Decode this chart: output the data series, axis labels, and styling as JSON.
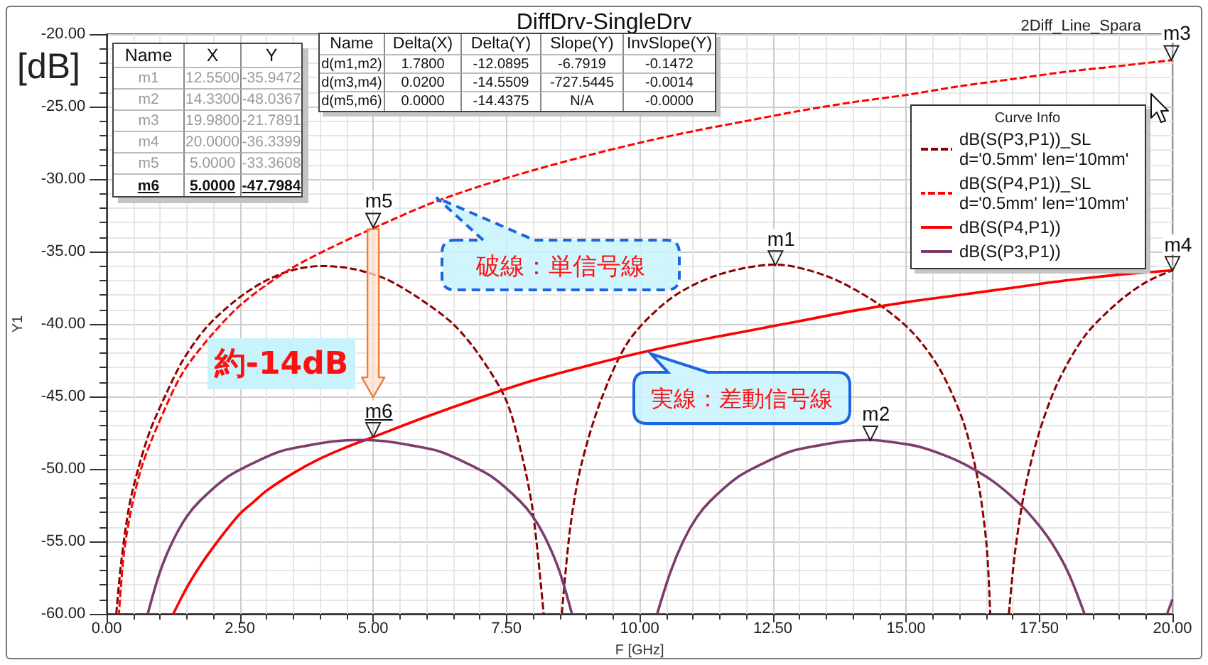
{
  "chart_data": {
    "type": "line",
    "title": "DiffDrv-SingleDrv",
    "subtitle": "2Diff_Line_Spara",
    "xlabel": "F [GHz]",
    "ylabel": "Y1",
    "legend_title": "Curve Info",
    "legend": "top right",
    "grid": true,
    "xlim": [
      0,
      20
    ],
    "xticks": [
      {
        "value": 0,
        "label": "0.00"
      },
      {
        "value": 2.5,
        "label": "2.50"
      },
      {
        "value": 5,
        "label": "5.00"
      },
      {
        "value": 7.5,
        "label": "7.50"
      },
      {
        "value": 10,
        "label": "10.00"
      },
      {
        "value": 12.5,
        "label": "12.50"
      },
      {
        "value": 15,
        "label": "15.00"
      },
      {
        "value": 17.5,
        "label": "17.50"
      },
      {
        "value": 20,
        "label": "20.00"
      }
    ],
    "ylim": [
      -60,
      -20
    ],
    "yticks": [
      {
        "value": -60,
        "label": "-60.00"
      },
      {
        "value": -55,
        "label": "-55.00"
      },
      {
        "value": -50,
        "label": "-50.00"
      },
      {
        "value": -45,
        "label": "-45.00"
      },
      {
        "value": -40,
        "label": "-40.00"
      },
      {
        "value": -35,
        "label": "-35.00"
      },
      {
        "value": -30,
        "label": "-30.00"
      },
      {
        "value": -25,
        "label": "-25.00"
      },
      {
        "value": -20,
        "label": "-20.00"
      }
    ],
    "series": [
      {
        "name": "dB(S(P3,P1))_SL d='0.5mm' len='10mm'",
        "color": "#8b0000",
        "line_style": "dashed",
        "x": [
          0.18,
          0.27,
          0.42,
          0.59,
          0.81,
          1.08,
          1.43,
          1.88,
          2.41,
          2.94,
          3.47,
          4.04,
          4.62,
          5.24,
          5.85,
          6.5,
          7.0,
          7.5,
          7.8,
          8.0,
          8.2,
          8.37,
          8.54,
          8.7,
          8.9,
          9.28,
          9.81,
          10.6,
          11.48,
          12.55,
          13.51,
          14.39,
          15.1,
          15.63,
          16.07,
          16.34,
          16.51,
          16.58,
          16.75,
          16.93,
          17.04,
          17.22,
          17.48,
          17.84,
          18.36,
          18.98,
          19.51,
          20.0
        ],
        "values": [
          -60,
          -56.5,
          -52.6,
          -50.0,
          -47.4,
          -45.1,
          -42.5,
          -40.2,
          -38.4,
          -37.1,
          -36.3,
          -36.0,
          -36.2,
          -36.9,
          -38.2,
          -40.0,
          -42.2,
          -45.3,
          -49.2,
          -53.0,
          -60,
          null,
          -60,
          -54.0,
          -49.8,
          -45.2,
          -41.1,
          -38.2,
          -36.6,
          -35.9,
          -36.7,
          -38.4,
          -40.5,
          -43.1,
          -46.7,
          -50.6,
          -55.2,
          -60,
          null,
          -60,
          -55.9,
          -51.6,
          -47.7,
          -44.1,
          -40.8,
          -38.5,
          -37.1,
          -36.3
        ]
      },
      {
        "name": "dB(S(P4,P1))_SL d='0.5mm' len='10mm'",
        "color": "#ff0000",
        "line_style": "dashed",
        "x": [
          0.23,
          0.32,
          0.47,
          0.67,
          0.98,
          1.42,
          1.96,
          2.57,
          3.45,
          4.34,
          5.0,
          6.0,
          7.0,
          8.0,
          9.0,
          10.0,
          11.0,
          12.0,
          13.0,
          14.0,
          15.0,
          16.0,
          17.0,
          18.0,
          19.0,
          19.98
        ],
        "values": [
          -60,
          -55.9,
          -52.6,
          -49.7,
          -46.8,
          -43.4,
          -40.8,
          -38.5,
          -36.2,
          -34.5,
          -33.4,
          -31.8,
          -30.5,
          -29.4,
          -28.4,
          -27.5,
          -26.7,
          -26.0,
          -25.3,
          -24.7,
          -24.2,
          -23.6,
          -23.1,
          -22.6,
          -22.2,
          -21.8
        ]
      },
      {
        "name": "dB(S(P4,P1))",
        "color": "#ff0000",
        "line_style": "solid",
        "x": [
          1.25,
          1.5,
          1.75,
          2.0,
          2.25,
          2.5,
          2.75,
          3.0,
          3.5,
          4.0,
          4.5,
          5.0,
          6.0,
          7.0,
          8.0,
          9.0,
          10.0,
          11.0,
          12.0,
          13.0,
          14.0,
          15.0,
          16.0,
          17.0,
          18.0,
          19.0,
          20.0
        ],
        "values": [
          -60,
          -58.2,
          -56.7,
          -55.4,
          -54.2,
          -53.1,
          -52.3,
          -51.5,
          -50.3,
          -49.3,
          -48.5,
          -47.8,
          -46.4,
          -45.1,
          -43.9,
          -42.9,
          -42.0,
          -41.2,
          -40.5,
          -39.8,
          -39.1,
          -38.5,
          -38.0,
          -37.5,
          -37.0,
          -36.6,
          -36.3
        ]
      },
      {
        "name": "dB(S(P3,P1))",
        "color": "#7d3c6e",
        "line_style": "solid",
        "x": [
          0.77,
          1.0,
          1.25,
          1.5,
          1.75,
          2.25,
          2.75,
          3.25,
          3.75,
          4.25,
          4.75,
          5.25,
          5.75,
          6.25,
          6.75,
          7.25,
          7.75,
          8.0,
          8.25,
          8.5,
          8.73,
          9.5,
          10.33,
          10.58,
          10.83,
          11.08,
          11.33,
          11.83,
          12.33,
          12.83,
          13.33,
          13.83,
          14.33,
          14.83,
          15.28,
          15.75,
          16.16,
          16.65,
          17.13,
          17.45,
          17.75,
          18.05,
          18.35,
          19.1,
          19.9,
          20.0
        ],
        "values": [
          -60,
          -57.1,
          -54.9,
          -53.3,
          -52.2,
          -50.6,
          -49.6,
          -48.8,
          -48.4,
          -48.1,
          -48.0,
          -48.1,
          -48.4,
          -48.8,
          -49.6,
          -50.6,
          -52.2,
          -53.3,
          -54.9,
          -57.1,
          -60,
          null,
          -60,
          -57.1,
          -54.9,
          -53.3,
          -52.2,
          -50.6,
          -49.6,
          -48.8,
          -48.4,
          -48.1,
          -48.0,
          -48.2,
          -48.5,
          -49.1,
          -49.8,
          -50.9,
          -52.4,
          -53.7,
          -55.2,
          -57.2,
          -60,
          null,
          -60,
          -59.0
        ]
      }
    ],
    "annotations": [
      "[dB]",
      "Name",
      "X",
      "Y",
      "m1",
      "12.5500",
      "-35.9472",
      "m2",
      "14.3300",
      "-48.0367",
      "m3",
      "19.9800",
      "-21.7891",
      "m4",
      "20.0000",
      "-36.3399",
      "m5",
      "5.0000",
      "-33.3608",
      "m6",
      "5.0000",
      "-47.7984",
      "Name",
      "Delta(X)",
      "Delta(Y)",
      "Slope(Y)",
      "InvSlope(Y)",
      "d(m1,m2)",
      "1.7800",
      "-12.0895",
      "-6.7919",
      "-0.1472",
      "d(m3,m4)",
      "0.0200",
      "-14.5509",
      "-727.5445",
      "-0.0014",
      "d(m5,m6)",
      "0.0000",
      "-14.4375",
      "N/A",
      "-0.0000",
      "破線：単信号線",
      "実線：差動信号線",
      "約-14dB",
      {
        "text": "m1",
        "x": 12.55,
        "y": -35.9472
      },
      {
        "text": "m2",
        "x": 14.33,
        "y": -48.0367
      },
      {
        "text": "m3",
        "x": 19.98,
        "y": -21.7891
      },
      {
        "text": "m4",
        "x": 20.0,
        "y": -36.3399
      },
      {
        "text": "m5",
        "x": 5.0,
        "y": -33.3608
      },
      {
        "text": "m6",
        "x": 5.0,
        "y": -47.7984
      }
    ]
  }
}
